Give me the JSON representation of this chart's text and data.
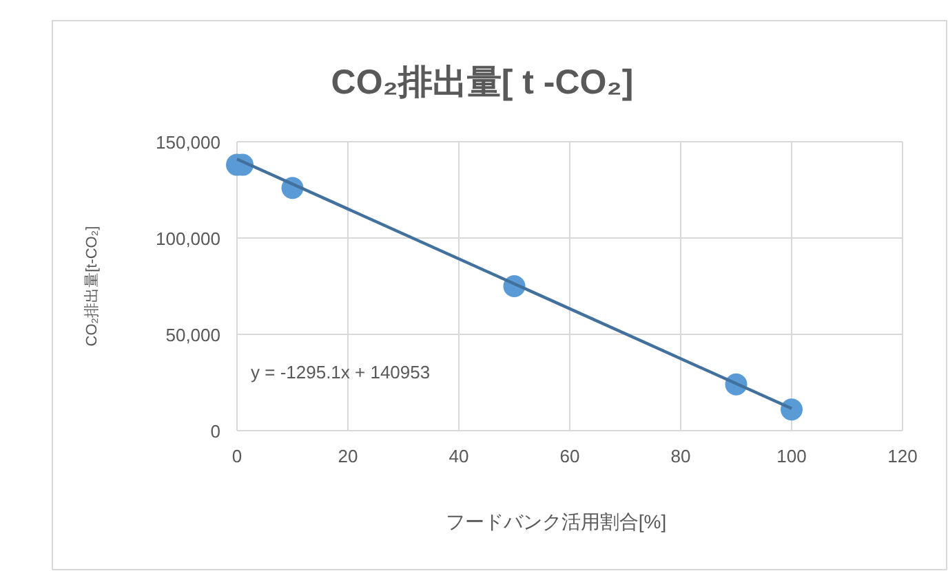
{
  "chart_data": {
    "type": "scatter",
    "title": "CO₂排出量[ t -CO₂]",
    "xlabel": "フードバンク活用割合[%]",
    "ylabel": "CO₂排出量[t-CO₂]",
    "annotations": [
      "y = -1295.1x + 140953"
    ],
    "series": [
      {
        "color": "#5b9bd5",
        "marker": "circle",
        "x": [
          0,
          1,
          10,
          50,
          90,
          100
        ],
        "values": [
          138000,
          138000,
          126000,
          75000,
          24000,
          11000
        ]
      },
      {
        "type": "line",
        "color": "#41719c",
        "marker": "none",
        "x": [
          0,
          100
        ],
        "values": [
          141000,
          11500
        ]
      }
    ],
    "xlim": [
      0,
      120
    ],
    "xticks": [
      0,
      20,
      40,
      60,
      80,
      100,
      120
    ],
    "ylim": [
      0,
      150000
    ],
    "yticks": [
      {
        "value": 0,
        "label": "0"
      },
      {
        "value": 50000,
        "label": "50,000"
      },
      {
        "value": 100000,
        "label": "100,000"
      },
      {
        "value": 150000,
        "label": "150,000"
      }
    ],
    "grid": true
  }
}
